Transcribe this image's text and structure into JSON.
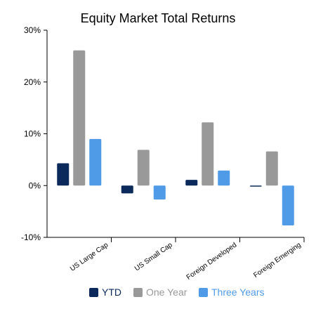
{
  "chart_data": {
    "type": "bar",
    "title": "Equity Market Total Returns",
    "categories": [
      "US Large Cap",
      "US Small Cap",
      "Foreign Developed",
      "Foreign Emerging"
    ],
    "series": [
      {
        "name": "YTD",
        "values": [
          4.3,
          -1.5,
          1.1,
          -0.2
        ],
        "color": "#0b2a5b"
      },
      {
        "name": "One Year",
        "values": [
          26.1,
          6.9,
          12.2,
          6.6
        ],
        "color": "#999999"
      },
      {
        "name": "Three Years",
        "values": [
          9.0,
          -2.7,
          2.9,
          -7.7
        ],
        "color": "#4f9be8"
      }
    ],
    "ylim": [
      -10,
      30
    ],
    "yticks": [
      -10,
      0,
      10,
      20,
      30
    ],
    "ytick_labels": [
      "-10%",
      "0%",
      "10%",
      "20%",
      "30%"
    ],
    "grid": false,
    "legend_position": "bottom"
  }
}
